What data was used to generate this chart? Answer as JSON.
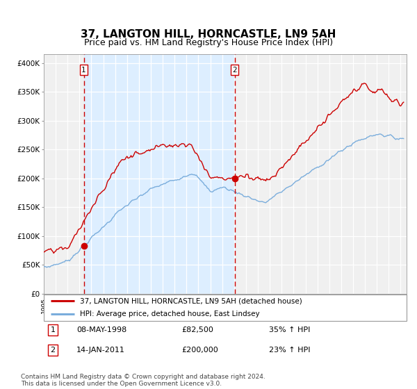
{
  "title": "37, LANGTON HILL, HORNCASTLE, LN9 5AH",
  "subtitle": "Price paid vs. HM Land Registry's House Price Index (HPI)",
  "ylabel_ticks": [
    "£0",
    "£50K",
    "£100K",
    "£150K",
    "£200K",
    "£250K",
    "£300K",
    "£350K",
    "£400K"
  ],
  "ytick_values": [
    0,
    50000,
    100000,
    150000,
    200000,
    250000,
    300000,
    350000,
    400000
  ],
  "ylim": [
    0,
    415000
  ],
  "xlim_start": 1995.0,
  "xlim_end": 2025.5,
  "purchase1_date": 1998.36,
  "purchase1_value": 82500,
  "purchase2_date": 2011.04,
  "purchase2_value": 200000,
  "legend1": "37, LANGTON HILL, HORNCASTLE, LN9 5AH (detached house)",
  "legend2": "HPI: Average price, detached house, East Lindsey",
  "ann1_label": "1",
  "ann1_date": "08-MAY-1998",
  "ann1_price": "£82,500",
  "ann1_hpi": "35% ↑ HPI",
  "ann2_label": "2",
  "ann2_date": "14-JAN-2011",
  "ann2_price": "£200,000",
  "ann2_hpi": "23% ↑ HPI",
  "footnote": "Contains HM Land Registry data © Crown copyright and database right 2024.\nThis data is licensed under the Open Government Licence v3.0.",
  "red_line_color": "#cc0000",
  "blue_line_color": "#7aaddc",
  "bg_span_color": "#ddeeff",
  "plot_bg_color": "#f0f0f0",
  "grid_color": "#cccccc",
  "vline_color": "#cc0000",
  "title_fontsize": 11,
  "subtitle_fontsize": 9
}
